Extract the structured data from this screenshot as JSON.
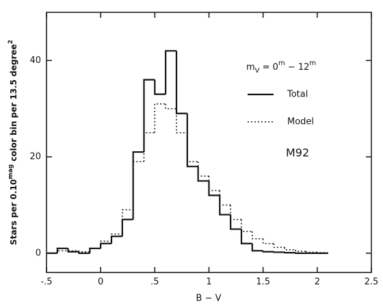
{
  "chart_data": {
    "type": "histogram",
    "ylabel": [
      "Stars per 0.10",
      "mag",
      " color bin per 13.5 degree",
      "2"
    ],
    "xlabel": "B − V",
    "annotation": [
      "m",
      "V",
      " = 0",
      "m",
      " − 12",
      "m"
    ],
    "label": "M92",
    "bins": [
      -0.5,
      -0.4,
      -0.3,
      -0.2,
      -0.1,
      0,
      0.1,
      0.2,
      0.3,
      0.4,
      0.5,
      0.6,
      0.7,
      0.8,
      0.9,
      1.0,
      1.1,
      1.2,
      1.3,
      1.4,
      1.5,
      1.6,
      1.7,
      1.8,
      1.9,
      2.0,
      2.1
    ],
    "series": [
      {
        "name": "Total",
        "color": "#111111",
        "dash": "solid",
        "values": [
          0,
          1,
          0.3,
          0,
          1,
          2,
          3.5,
          7,
          21,
          36,
          33,
          42,
          29,
          18,
          15,
          12,
          8,
          5,
          2,
          0.5,
          0.3,
          0.2,
          0.1,
          0,
          0,
          0
        ]
      },
      {
        "name": "Model",
        "color": "#111111",
        "dash": "dotted",
        "values": [
          0,
          0.5,
          0.5,
          0.3,
          1,
          2.5,
          4,
          9,
          19,
          25,
          31,
          30,
          25,
          19,
          16,
          13,
          10,
          7,
          4.5,
          3,
          2,
          1.2,
          0.7,
          0.4,
          0.2,
          0.1
        ]
      }
    ],
    "xlim": [
      -0.5,
      2.5
    ],
    "ylim": [
      -4,
      50
    ],
    "xticks": [
      {
        "value": -0.5,
        "label": "-.5"
      },
      0,
      {
        "value": 0.5,
        "label": ".5"
      },
      1,
      1.5,
      2,
      2.5
    ],
    "yticks": [
      0,
      20,
      40
    ]
  }
}
